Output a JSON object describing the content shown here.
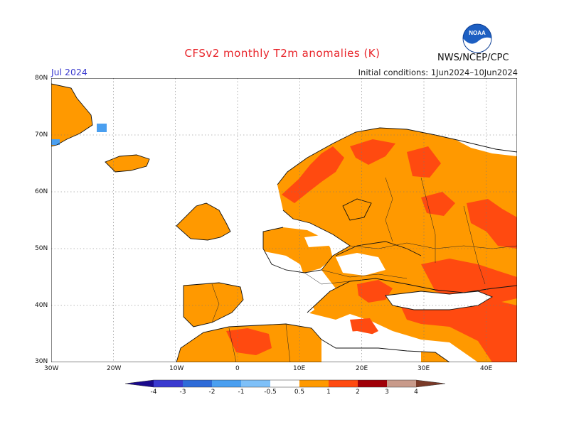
{
  "header": {
    "title": "CFSv2 monthly T2m anomalies (K)",
    "month": "Jul 2024",
    "initial_conditions": "Initial conditions: 1Jun2024–10Jun2024",
    "agency": "NWS/NCEP/CPC",
    "logo_text": "NOAA"
  },
  "map": {
    "lat_labels": [
      "80N",
      "70N",
      "60N",
      "50N",
      "40N",
      "30N"
    ],
    "lon_labels": [
      "30W",
      "20W",
      "10W",
      "0",
      "10E",
      "20E",
      "30E",
      "40E"
    ],
    "extent": {
      "lon": [
        -30,
        45
      ],
      "lat": [
        30,
        80
      ]
    },
    "grid": "dotted"
  },
  "colorbar": {
    "labels": [
      "-4",
      "-3",
      "-2",
      "-1",
      "-0.5",
      "0.5",
      "1",
      "2",
      "3",
      "4"
    ],
    "colors": {
      "lt_-4": "#1a0a8c",
      "-4_-3": "#3a3acf",
      "-3_-2": "#2e6bd8",
      "-2_-1": "#4a9ff0",
      "-1_-0.5": "#7ec0f8",
      "-0.5_0.5": "#ffffff",
      "0.5_1": "#ff9900",
      "1_2": "#ff4a10",
      "2_3": "#a00008",
      "3_4": "#c89a8a",
      "gt_4": "#7a3a28"
    }
  }
}
